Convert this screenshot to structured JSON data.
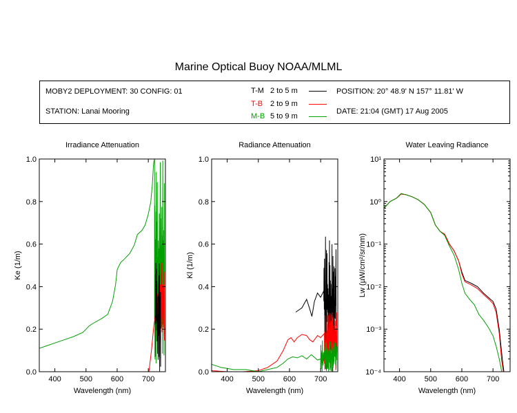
{
  "title": "Marine Optical Buoy NOAA/MLML",
  "info": {
    "deployment": "MOBY2 DEPLOYMENT: 30 CONFIG: 01",
    "station": "STATION: Lanai Mooring",
    "position": "POSITION: 20° 48.9' N   157° 11.81' W",
    "date": "DATE: 21:04 (GMT) 17 Aug 2005"
  },
  "legend": [
    {
      "code": "T-M",
      "range": "2 to 5  m",
      "color": "#000000"
    },
    {
      "code": "T-B",
      "range": "2 to 9  m",
      "color": "#ff0000"
    },
    {
      "code": "M-B",
      "range": "5 to 9  m",
      "color": "#00a000"
    }
  ],
  "chart_data": [
    {
      "type": "line",
      "title": "Irradiance Attenuation",
      "xlabel": "Wavelength (nm)",
      "ylabel": "Ke  (1/m)",
      "xlim": [
        350,
        755
      ],
      "ylim": [
        0,
        1
      ],
      "xticks": [
        "400",
        "500",
        "600",
        "700"
      ],
      "yticks": [
        "0.0",
        "0.2",
        "0.4",
        "0.6",
        "0.8",
        "1.0"
      ],
      "series": [
        {
          "name": "M-B",
          "color": "#00a000",
          "x": [
            350,
            380,
            420,
            460,
            490,
            510,
            520,
            550,
            570,
            585,
            595,
            600,
            605,
            612,
            620,
            640,
            655,
            665,
            680,
            690,
            700,
            708,
            713,
            716,
            718,
            720
          ],
          "y": [
            0.11,
            0.125,
            0.145,
            0.165,
            0.185,
            0.215,
            0.225,
            0.25,
            0.27,
            0.33,
            0.41,
            0.48,
            0.495,
            0.515,
            0.525,
            0.555,
            0.595,
            0.645,
            0.665,
            0.69,
            0.74,
            0.8,
            0.88,
            0.96,
            0.99,
            1.0
          ],
          "noise": {
            "x0": 720,
            "x1": 752,
            "ymin": 0.0,
            "ymax": 1.0
          }
        },
        {
          "name": "T-B",
          "color": "#ff0000",
          "x": [
            702,
            710,
            718,
            724,
            728,
            732
          ],
          "y": [
            0.0,
            0.1,
            0.22,
            0.28,
            0.3,
            0.33
          ],
          "noise": {
            "x0": 728,
            "x1": 752,
            "ymin": 0.12,
            "ymax": 0.52
          }
        },
        {
          "name": "T-M",
          "color": "#000000",
          "x": [],
          "y": [],
          "noise": {
            "x0": 722,
            "x1": 740,
            "ymin": 0.0,
            "ymax": 0.52
          }
        }
      ]
    },
    {
      "type": "line",
      "title": "Radiance Attenuation",
      "xlabel": "Wavelength (nm)",
      "ylabel": "Kl  (1/m)",
      "xlim": [
        350,
        755
      ],
      "ylim": [
        0,
        1
      ],
      "xticks": [
        "400",
        "500",
        "600",
        "700"
      ],
      "yticks": [
        "0.0",
        "0.2",
        "0.4",
        "0.6",
        "0.8",
        "1.0"
      ],
      "series": [
        {
          "name": "T-M",
          "color": "#000000",
          "x": [
            620,
            625,
            640,
            655,
            665,
            672,
            680,
            690,
            700,
            710
          ],
          "y": [
            0.28,
            0.285,
            0.3,
            0.34,
            0.295,
            0.26,
            0.33,
            0.37,
            0.35,
            0.38
          ],
          "noise": {
            "x0": 710,
            "x1": 750,
            "ymin": 0.0,
            "ymax": 0.67
          }
        },
        {
          "name": "T-B",
          "color": "#ff0000",
          "x": [
            350,
            400,
            450,
            500,
            530,
            560,
            580,
            595,
            605,
            615,
            625,
            640,
            655,
            665,
            675,
            690,
            700,
            712
          ],
          "y": [
            0.005,
            0.0,
            0.0,
            0.005,
            0.02,
            0.05,
            0.1,
            0.15,
            0.16,
            0.14,
            0.16,
            0.175,
            0.17,
            0.15,
            0.14,
            0.17,
            0.16,
            0.18
          ],
          "noise": {
            "x0": 712,
            "x1": 752,
            "ymin": 0.0,
            "ymax": 0.28
          }
        },
        {
          "name": "M-B",
          "color": "#00a000",
          "x": [
            350,
            380,
            420,
            460,
            500,
            530,
            560,
            580,
            595,
            610,
            625,
            640,
            655,
            670,
            690,
            700
          ],
          "y": [
            0.035,
            0.02,
            0.01,
            0.01,
            0.0,
            0.01,
            0.02,
            0.04,
            0.06,
            0.07,
            0.065,
            0.075,
            0.06,
            0.08,
            0.055,
            0.06
          ],
          "noise": {
            "x0": 700,
            "x1": 752,
            "ymin": 0.0,
            "ymax": 0.15
          }
        }
      ]
    },
    {
      "type": "line",
      "title": "Water Leaving Radiance",
      "xlabel": "Wavelength (nm)",
      "ylabel": "Lw  (µW/cm²/sr/nm)",
      "xscale": "log-y",
      "xlim": [
        350,
        755
      ],
      "ylim": [
        0.0001,
        10
      ],
      "xticks": [
        "400",
        "500",
        "600",
        "700"
      ],
      "yticks": [
        "10⁻⁴",
        "10⁻³",
        "10⁻²",
        "10⁻¹",
        "10⁰",
        "10¹"
      ],
      "series": [
        {
          "name": "T-M",
          "color": "#000000",
          "x": [
            350,
            370,
            390,
            405,
            420,
            440,
            460,
            480,
            500,
            515,
            530,
            545,
            560,
            575,
            590,
            600,
            610,
            630,
            650,
            670,
            690,
            700,
            710,
            720,
            730,
            735
          ],
          "y": [
            0.7,
            1.0,
            1.2,
            1.5,
            1.45,
            1.3,
            1.1,
            0.85,
            0.55,
            0.28,
            0.2,
            0.17,
            0.1,
            0.07,
            0.04,
            0.022,
            0.014,
            0.012,
            0.01,
            0.007,
            0.0052,
            0.0045,
            0.003,
            0.001,
            0.0002,
            0.0001
          ]
        },
        {
          "name": "T-B",
          "color": "#ff0000",
          "x": [
            350,
            370,
            390,
            405,
            420,
            440,
            460,
            480,
            500,
            515,
            530,
            545,
            560,
            575,
            590,
            600,
            610,
            630,
            650,
            670,
            690,
            700,
            710,
            720,
            728,
            733
          ],
          "y": [
            0.7,
            1.0,
            1.2,
            1.5,
            1.45,
            1.3,
            1.1,
            0.85,
            0.55,
            0.28,
            0.2,
            0.17,
            0.1,
            0.07,
            0.04,
            0.02,
            0.013,
            0.011,
            0.009,
            0.0065,
            0.0048,
            0.004,
            0.0025,
            0.0008,
            0.00018,
            0.0001
          ]
        },
        {
          "name": "M-B",
          "color": "#00a000",
          "x": [
            350,
            370,
            390,
            405,
            420,
            440,
            460,
            480,
            500,
            515,
            530,
            545,
            560,
            575,
            590,
            600,
            610,
            625,
            640,
            655,
            670,
            685,
            700,
            710,
            720,
            728
          ],
          "y": [
            0.7,
            1.0,
            1.2,
            1.55,
            1.45,
            1.3,
            1.1,
            0.85,
            0.55,
            0.28,
            0.2,
            0.16,
            0.09,
            0.055,
            0.025,
            0.012,
            0.007,
            0.005,
            0.0038,
            0.0022,
            0.0016,
            0.0011,
            0.0007,
            0.0004,
            0.0002,
            0.0001
          ]
        }
      ]
    }
  ]
}
